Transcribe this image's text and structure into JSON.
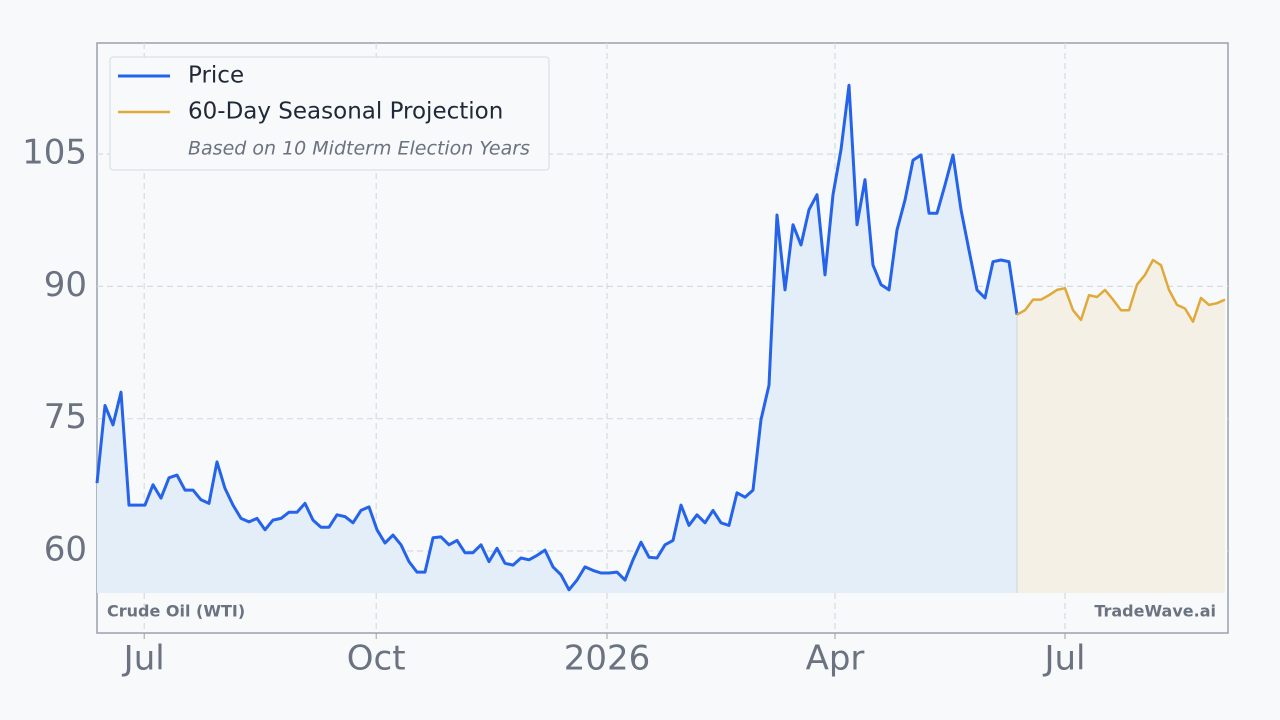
{
  "chart_data": {
    "type": "line",
    "series": [
      {
        "name": "Price",
        "color": "#2563eb",
        "fill": "#e3eef9",
        "values": [
          67.7,
          76.5,
          74.3,
          78.0,
          65.2,
          65.2,
          65.2,
          67.5,
          66.0,
          68.3,
          68.6,
          66.9,
          66.9,
          65.8,
          65.4,
          70.1,
          67.1,
          65.2,
          63.7,
          63.3,
          63.7,
          62.4,
          63.5,
          63.7,
          64.4,
          64.4,
          65.4,
          63.5,
          62.7,
          62.7,
          64.1,
          63.9,
          63.2,
          64.6,
          65.0,
          62.4,
          60.9,
          61.8,
          60.7,
          58.8,
          57.6,
          57.6,
          61.5,
          61.6,
          60.7,
          61.2,
          59.8,
          59.8,
          60.7,
          58.8,
          60.3,
          58.6,
          58.4,
          59.2,
          59.0,
          59.5,
          60.1,
          58.2,
          57.3,
          55.6,
          56.7,
          58.2,
          57.8,
          57.5,
          57.5,
          57.6,
          56.7,
          59.0,
          61.0,
          59.3,
          59.2,
          60.7,
          61.2,
          65.2,
          62.9,
          64.1,
          63.2,
          64.6,
          63.2,
          62.9,
          66.6,
          66.1,
          66.9,
          74.9,
          78.8,
          98.1,
          89.6,
          97.0,
          94.7,
          98.7,
          100.4,
          91.3,
          100.4,
          105.5,
          112.8,
          97.0,
          102.1,
          92.4,
          90.2,
          89.6,
          96.4,
          99.8,
          104.3,
          104.9,
          98.3,
          98.3,
          101.5,
          104.9,
          98.7,
          94.1,
          89.6,
          88.7,
          92.8,
          93.0,
          92.8,
          86.8,
          null,
          null,
          null,
          null,
          null,
          null,
          null,
          null,
          null,
          null,
          null,
          null,
          null,
          null,
          null,
          null,
          null,
          null,
          null,
          null,
          null,
          null,
          null,
          null,
          null,
          null
        ]
      },
      {
        "name": "60-Day Seasonal Projection",
        "color": "#e0a93a",
        "fill": "#f5f0e6",
        "values": [
          null,
          null,
          null,
          null,
          null,
          null,
          null,
          null,
          null,
          null,
          null,
          null,
          null,
          null,
          null,
          null,
          null,
          null,
          null,
          null,
          null,
          null,
          null,
          null,
          null,
          null,
          null,
          null,
          null,
          null,
          null,
          null,
          null,
          null,
          null,
          null,
          null,
          null,
          null,
          null,
          null,
          null,
          null,
          null,
          null,
          null,
          null,
          null,
          null,
          null,
          null,
          null,
          null,
          null,
          null,
          null,
          null,
          null,
          null,
          null,
          null,
          null,
          null,
          null,
          null,
          null,
          null,
          null,
          null,
          null,
          null,
          null,
          null,
          null,
          null,
          null,
          null,
          null,
          null,
          null,
          null,
          null,
          null,
          null,
          null,
          null,
          null,
          null,
          null,
          null,
          null,
          null,
          null,
          null,
          null,
          null,
          null,
          null,
          null,
          null,
          null,
          null,
          null,
          null,
          null,
          null,
          null,
          null,
          null,
          null,
          null,
          null,
          null,
          null,
          null,
          86.8,
          87.3,
          88.5,
          88.5,
          89.0,
          89.6,
          89.8,
          87.3,
          86.2,
          89.0,
          88.8,
          89.6,
          88.5,
          87.3,
          87.3,
          90.2,
          91.3,
          93.0,
          92.4,
          89.6,
          87.9,
          87.5,
          86.0,
          88.7,
          87.9,
          88.1,
          88.5
        ]
      }
    ],
    "annotation": "Based on 10 Midterm Election Years",
    "footer_left": "Crude Oil (WTI)",
    "footer_right": "TradeWave.ai",
    "xlim": [
      0,
      141.375
    ],
    "xticks": [
      {
        "value": 5.9,
        "label": "Jul"
      },
      {
        "value": 34.9,
        "label": "Oct"
      },
      {
        "value": 63.75,
        "label": "2026"
      },
      {
        "value": 92.25,
        "label": "Apr"
      },
      {
        "value": 121,
        "label": "Jul"
      }
    ],
    "ylim": [
      50.7,
      117.6
    ],
    "yticks": [
      60,
      75,
      90,
      105
    ],
    "grid": true,
    "legend": "upper left"
  }
}
